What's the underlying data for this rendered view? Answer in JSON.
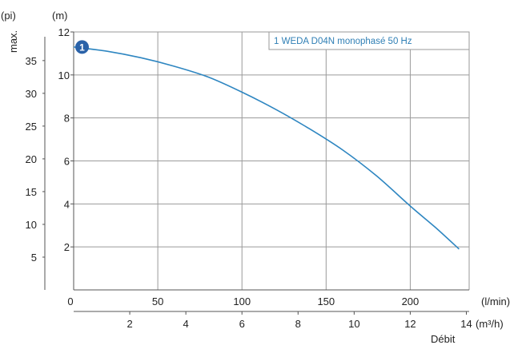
{
  "chart_data": {
    "type": "line",
    "title": "",
    "legend": {
      "text": "1 WEDA D04N monophasé 50 Hz",
      "placement": "top-right"
    },
    "units": {
      "y_left_outer": "(pi)",
      "y_left_inner": "(m)",
      "x_top": "(l/min)",
      "x_bottom": "(m³/h)",
      "x_title": "Débit"
    },
    "max_label": "max.",
    "y_m_ticks": [
      2,
      4,
      6,
      8,
      10,
      12
    ],
    "y_ft_ticks": [
      5,
      10,
      15,
      20,
      25,
      30,
      35
    ],
    "x_lmin_ticks": [
      0,
      50,
      100,
      150,
      200
    ],
    "x_m3h_ticks": [
      2,
      4,
      6,
      8,
      10,
      12,
      14
    ],
    "xlim_lmin": [
      0,
      235
    ],
    "ylim_m": [
      0,
      12
    ],
    "grid": true,
    "series": [
      {
        "name": "1",
        "color": "#2e86c1",
        "x_lmin": [
          0,
          20,
          40,
          60,
          80,
          100,
          120,
          140,
          160,
          180,
          200,
          215,
          229
        ],
        "y_m": [
          11.3,
          11.1,
          10.8,
          10.4,
          9.9,
          9.2,
          8.4,
          7.5,
          6.5,
          5.3,
          3.9,
          2.9,
          1.9
        ]
      }
    ],
    "marker": {
      "label": "1",
      "x_lmin": 5,
      "y_m": 11.3,
      "color": "#2a62a8"
    }
  }
}
